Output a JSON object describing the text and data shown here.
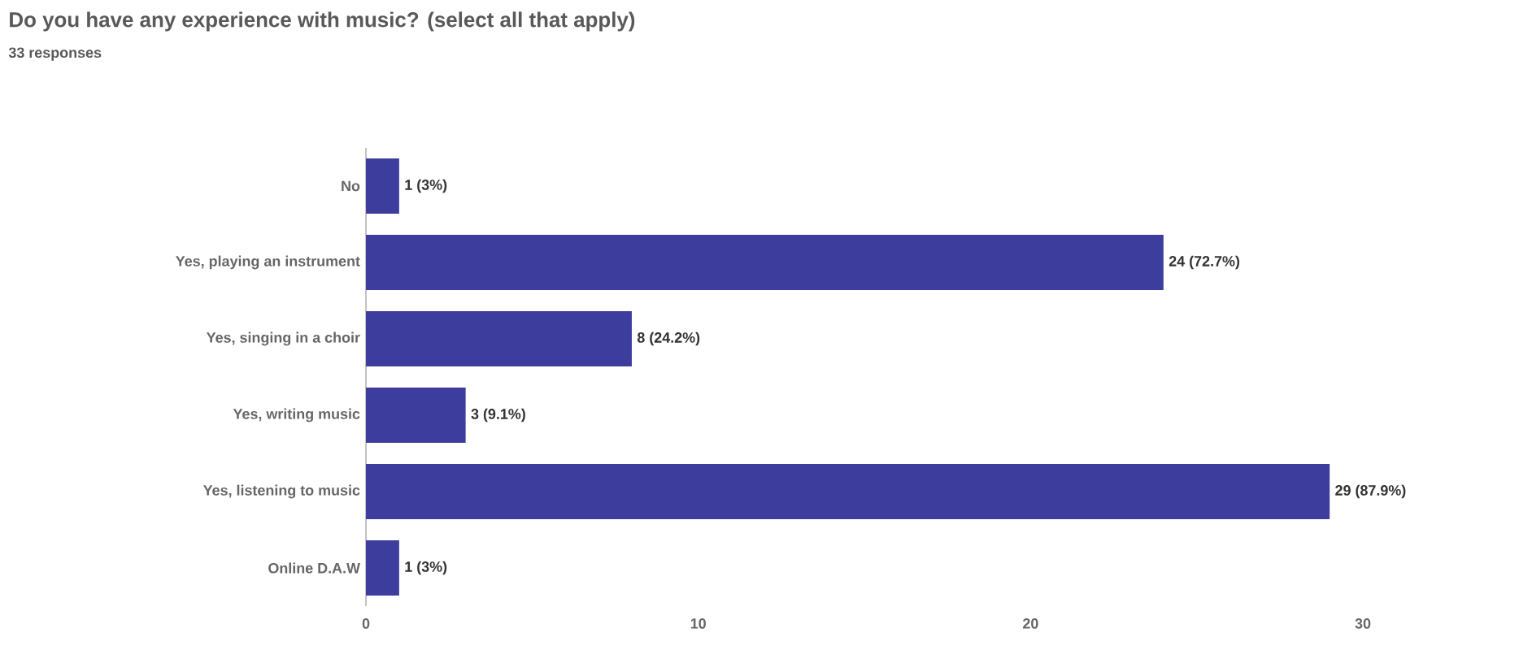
{
  "chart_data": {
    "type": "bar",
    "orientation": "horizontal",
    "title": "Do you have any experience with music? (select all that apply)",
    "subtitle": "33 responses",
    "categories": [
      "No",
      "Yes, playing an instrument",
      "Yes, singing in a choir",
      "Yes, writing music",
      "Yes, listening to music",
      "Online D.A.W"
    ],
    "values": [
      1,
      24,
      8,
      3,
      29,
      1
    ],
    "value_labels": [
      "1 (3%)",
      "24 (72.7%)",
      "8 (24.2%)",
      "3 (9.1%)",
      "29 (87.9%)",
      "1 (3%)"
    ],
    "color": "#3d3d9e",
    "xlim": [
      0,
      30
    ],
    "xticks": [
      0,
      10,
      20,
      30
    ],
    "grid": false
  }
}
